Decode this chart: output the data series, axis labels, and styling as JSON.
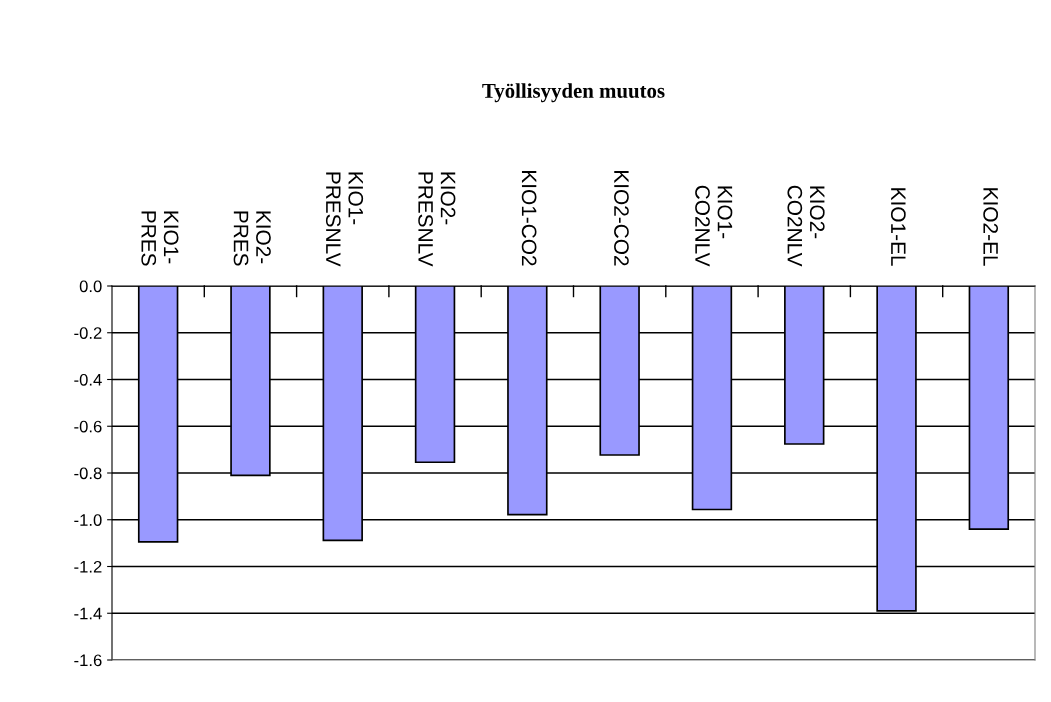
{
  "chart_data": {
    "type": "bar",
    "title": "Työllisyyden muutos",
    "categories": [
      "KIO1-\nPRES",
      "KIO2-\nPRES",
      "KIO1-\nPRESNLV",
      "KIO2-\nPRESNLV",
      "KIO1-CO2",
      "KIO2-CO2",
      "KIO1-\nCO2NLV",
      "KIO2-\nCO2NLV",
      "KIO1-EL",
      "KIO2-EL"
    ],
    "values": [
      -1.095,
      -0.81,
      -1.088,
      -0.754,
      -0.978,
      -0.723,
      -0.956,
      -0.676,
      -1.39,
      -1.04
    ],
    "color": "#9999ff",
    "ylim": [
      -1.6,
      0.0
    ],
    "yticks": [
      {
        "value": 0.0,
        "label": "0.0"
      },
      -0.2,
      -0.4,
      -0.6,
      -0.8,
      {
        "value": -1.0,
        "label": "-1.0"
      },
      -1.2,
      -1.4,
      -1.6
    ],
    "grid": "y"
  }
}
